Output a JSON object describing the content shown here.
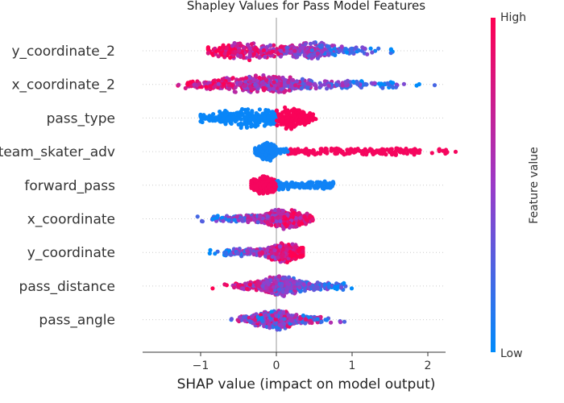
{
  "chart_data": {
    "type": "scatter",
    "subtype": "beeswarm",
    "title": "Shapley Values for Pass Model Features",
    "xlabel": "SHAP value (impact on model output)",
    "xlim": [
      -1.75,
      2.3
    ],
    "xticks": [
      {
        "value": -1,
        "label": "−1"
      },
      {
        "value": 0,
        "label": "0"
      },
      {
        "value": 1,
        "label": "1"
      },
      {
        "value": 2,
        "label": "2"
      }
    ],
    "features": [
      {
        "name": "y_coordinate_2",
        "min": -0.9,
        "max": 1.55,
        "core": [
          -0.75,
          1.2
        ],
        "density": [
          [
            -0.45,
            0.3
          ],
          [
            0.45,
            0.2
          ]
        ],
        "color_low_side": "right"
      },
      {
        "name": "x_coordinate_2",
        "min": -1.6,
        "max": 2.1,
        "core": [
          -1.2,
          1.6
        ],
        "density": [
          [
            -0.2,
            0.4
          ]
        ],
        "color_low_side": "right"
      },
      {
        "name": "pass_type",
        "min": -1.0,
        "max": 0.52,
        "core": [
          -0.98,
          0.5
        ],
        "density": [
          [
            -0.35,
            0.35
          ],
          [
            0.22,
            0.12
          ]
        ],
        "color_low_side": "left"
      },
      {
        "name": "team_skater_adv",
        "min": -0.28,
        "max": 2.4,
        "core": [
          -0.25,
          1.9
        ],
        "density": [
          [
            -0.12,
            0.07
          ]
        ],
        "color_low_side": "left"
      },
      {
        "name": "forward_pass",
        "min": -0.33,
        "max": 0.78,
        "core": [
          -0.3,
          0.75
        ],
        "density": [
          [
            -0.15,
            0.1
          ]
        ],
        "color_low_side": "right"
      },
      {
        "name": "x_coordinate",
        "min": -1.05,
        "max": 0.48,
        "core": [
          -0.85,
          0.45
        ],
        "density": [
          [
            0.1,
            0.18
          ]
        ],
        "color_low_side": "left"
      },
      {
        "name": "y_coordinate",
        "min": -0.9,
        "max": 0.35,
        "core": [
          -0.7,
          0.32
        ],
        "density": [
          [
            0.1,
            0.15
          ]
        ],
        "color_low_side": "left"
      },
      {
        "name": "pass_distance",
        "min": -0.9,
        "max": 1.05,
        "core": [
          -0.55,
          0.9
        ],
        "density": [
          [
            0.05,
            0.18
          ]
        ],
        "color_low_side": "right"
      },
      {
        "name": "pass_angle",
        "min": -0.62,
        "max": 0.9,
        "core": [
          -0.5,
          0.6
        ],
        "density": [
          [
            0.0,
            0.18
          ]
        ],
        "color_low_side": "mixed"
      }
    ],
    "colorbar": {
      "label": "Feature value",
      "high_label": "High",
      "low_label": "Low",
      "high_color": "#ff0052",
      "low_color": "#008bfb"
    }
  }
}
